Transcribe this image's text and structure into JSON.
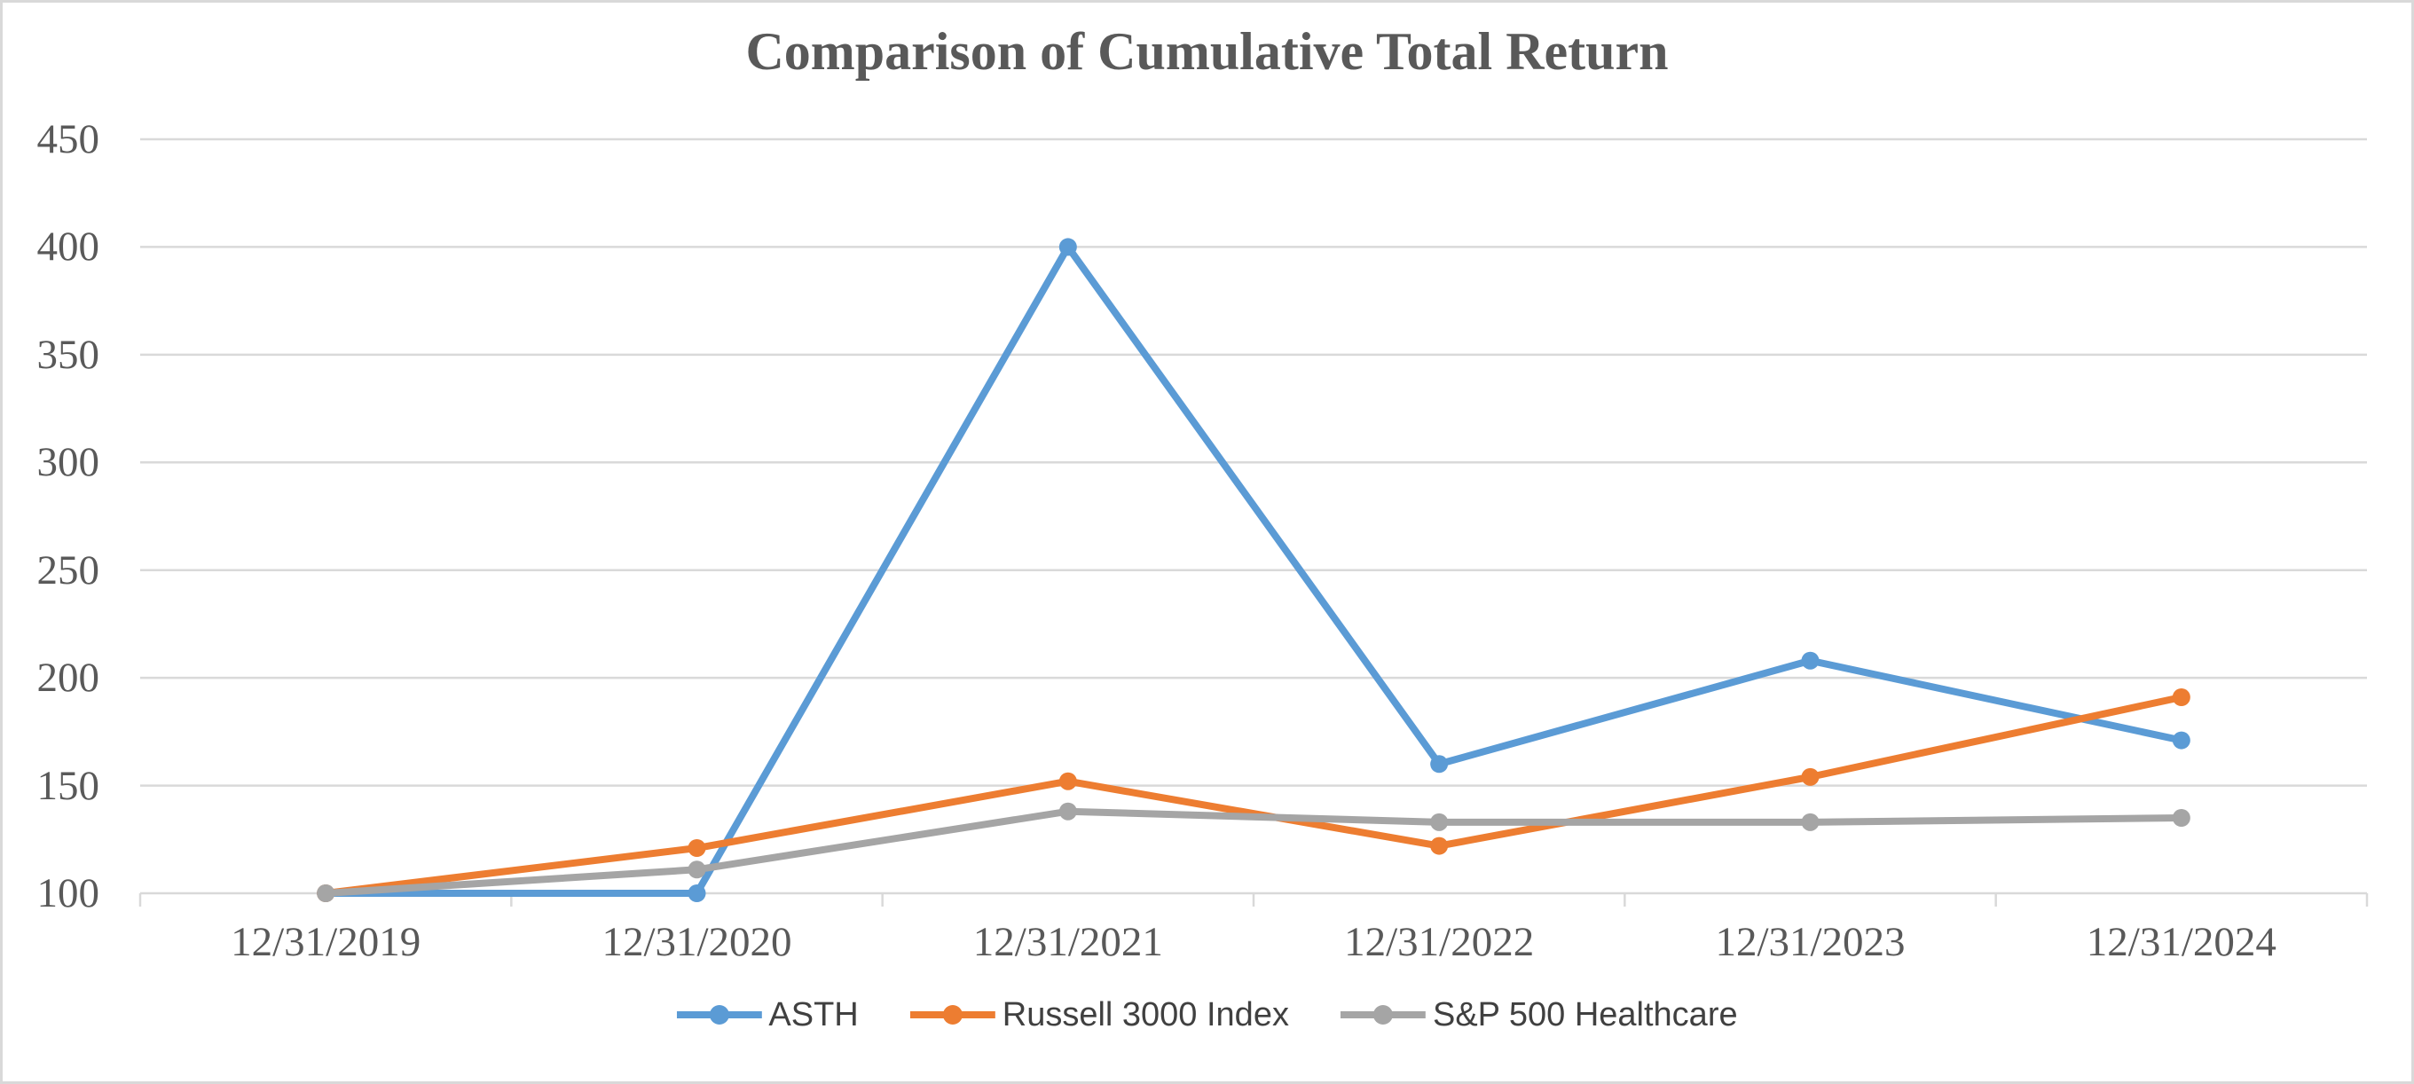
{
  "chart_data": {
    "type": "line",
    "title": "Comparison of Cumulative Total Return",
    "categories": [
      "12/31/2019",
      "12/31/2020",
      "12/31/2021",
      "12/31/2022",
      "12/31/2023",
      "12/31/2024"
    ],
    "series": [
      {
        "name": "ASTH",
        "color": "#5B9BD5",
        "values": [
          100,
          100,
          400,
          160,
          208,
          171
        ]
      },
      {
        "name": "Russell 3000 Index",
        "color": "#ED7D31",
        "values": [
          100,
          121,
          152,
          122,
          154,
          191
        ]
      },
      {
        "name": "S&P 500 Healthcare",
        "color": "#A5A5A5",
        "values": [
          100,
          111,
          138,
          133,
          133,
          135
        ]
      }
    ],
    "y_ticks": [
      100,
      150,
      200,
      250,
      300,
      350,
      400,
      450
    ],
    "ylim": [
      100,
      450
    ],
    "xlabel": "",
    "ylabel": "",
    "grid": "horizontal",
    "legend_position": "bottom",
    "marker": "circle"
  },
  "colors": {
    "gridline": "#D9D9D9",
    "axis_tick": "#D9D9D9",
    "frame_border": "#D9D9D9",
    "title_text": "#595959",
    "axis_text": "#595959",
    "legend_text": "#404040",
    "background": "#FFFFFF"
  }
}
